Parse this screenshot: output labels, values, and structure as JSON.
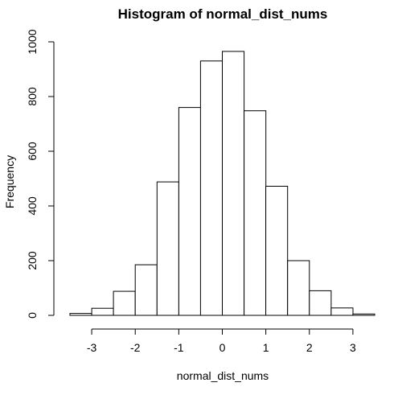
{
  "chart_data": {
    "type": "bar",
    "title": "Histogram of normal_dist_nums",
    "xlabel": "normal_dist_nums",
    "ylabel": "Frequency",
    "bin_edges": [
      -3.5,
      -3,
      -2.5,
      -2,
      -1.5,
      -1,
      -0.5,
      0,
      0.5,
      1,
      1.5,
      2,
      2.5,
      3,
      3.5
    ],
    "values": [
      7,
      26,
      88,
      185,
      488,
      760,
      930,
      965,
      748,
      472,
      200,
      90,
      27,
      5
    ],
    "x_ticks": [
      -3,
      -2,
      -1,
      0,
      1,
      2,
      3
    ],
    "y_ticks": [
      0,
      200,
      400,
      600,
      800,
      1000
    ],
    "xlim": [
      -3.5,
      3.5
    ],
    "ylim": [
      0,
      1000
    ],
    "grid": false,
    "bar_fill": "#ffffff",
    "bar_stroke": "#000000"
  }
}
